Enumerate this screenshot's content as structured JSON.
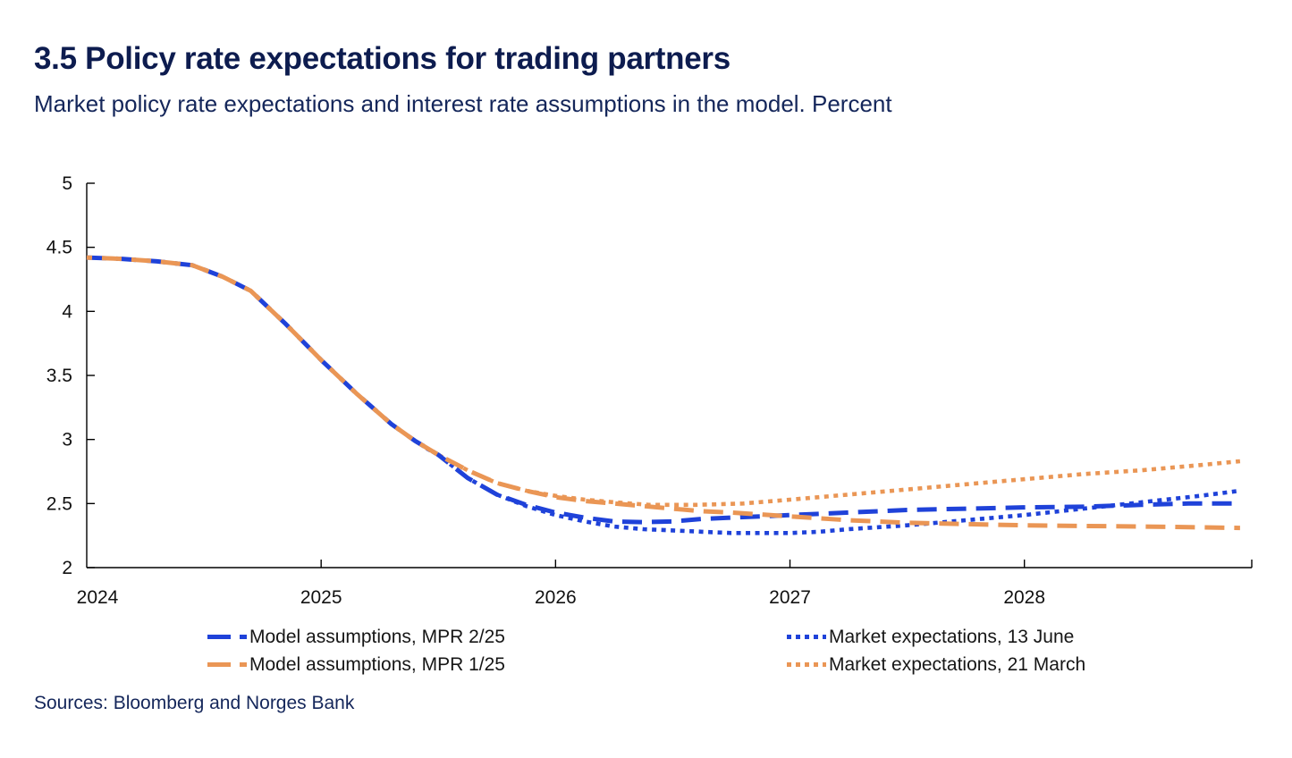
{
  "header": {
    "title": "3.5 Policy rate expectations for trading partners",
    "subtitle": "Market policy rate expectations and interest rate assumptions in the model. Percent"
  },
  "footer": {
    "sources": "Sources: Bloomberg and Norges Bank"
  },
  "colors": {
    "title_navy": "#0d1c4f",
    "axis": "#000000",
    "blue": "#1f42d9",
    "orange": "#ea9655"
  },
  "chart_data": {
    "type": "line",
    "title": "3.5 Policy rate expectations for trading partners",
    "subtitle": "Market policy rate expectations and interest rate assumptions in the model. Percent",
    "xlabel": "",
    "ylabel": "Percent",
    "grid": false,
    "legend_position": "bottom",
    "ylim": [
      2,
      5
    ],
    "yticks": [
      2,
      2.5,
      3,
      3.5,
      4,
      4.5,
      5
    ],
    "xlim": [
      2024,
      2028.97
    ],
    "xticks": [
      {
        "year": 2024,
        "label": "2024",
        "tick": false,
        "label_dx": 12
      },
      {
        "year": 2025,
        "label": "2025",
        "tick": true,
        "label_dx": 0
      },
      {
        "year": 2026,
        "label": "2026",
        "tick": true,
        "label_dx": 0
      },
      {
        "year": 2027,
        "label": "2027",
        "tick": true,
        "label_dx": 0
      },
      {
        "year": 2028,
        "label": "2028",
        "tick": true,
        "label_dx": 0
      },
      {
        "year": 2028.97,
        "label": "",
        "tick": true,
        "label_dx": 0
      }
    ],
    "series": [
      {
        "name": "Model assumptions, MPR 2/25",
        "color": "#1f42d9",
        "style": "dashed",
        "dash_offset": 0,
        "points": [
          [
            2024.0,
            4.42
          ],
          [
            2024.15,
            4.41
          ],
          [
            2024.3,
            4.39
          ],
          [
            2024.45,
            4.36
          ],
          [
            2024.58,
            4.27
          ],
          [
            2024.7,
            4.16
          ],
          [
            2024.85,
            3.9
          ],
          [
            2025.0,
            3.62
          ],
          [
            2025.15,
            3.36
          ],
          [
            2025.3,
            3.12
          ],
          [
            2025.4,
            2.99
          ],
          [
            2025.5,
            2.88
          ],
          [
            2025.625,
            2.7
          ],
          [
            2025.75,
            2.57
          ],
          [
            2025.875,
            2.49
          ],
          [
            2026.0,
            2.43
          ],
          [
            2026.125,
            2.39
          ],
          [
            2026.25,
            2.36
          ],
          [
            2026.375,
            2.355
          ],
          [
            2026.5,
            2.36
          ],
          [
            2026.625,
            2.38
          ],
          [
            2026.75,
            2.39
          ],
          [
            2027.0,
            2.41
          ],
          [
            2027.25,
            2.43
          ],
          [
            2027.5,
            2.45
          ],
          [
            2027.75,
            2.46
          ],
          [
            2028.0,
            2.47
          ],
          [
            2028.25,
            2.475
          ],
          [
            2028.5,
            2.49
          ],
          [
            2028.7,
            2.5
          ],
          [
            2028.92,
            2.5
          ]
        ]
      },
      {
        "name": "Model assumptions, MPR 1/25",
        "color": "#ea9655",
        "style": "dashed",
        "dash_offset": 16,
        "points": [
          [
            2024.0,
            4.42
          ],
          [
            2024.15,
            4.41
          ],
          [
            2024.3,
            4.39
          ],
          [
            2024.45,
            4.36
          ],
          [
            2024.58,
            4.27
          ],
          [
            2024.7,
            4.16
          ],
          [
            2024.85,
            3.9
          ],
          [
            2025.0,
            3.62
          ],
          [
            2025.15,
            3.36
          ],
          [
            2025.3,
            3.12
          ],
          [
            2025.4,
            2.99
          ],
          [
            2025.5,
            2.88
          ],
          [
            2025.625,
            2.76
          ],
          [
            2025.75,
            2.66
          ],
          [
            2025.875,
            2.6
          ],
          [
            2026.0,
            2.55
          ],
          [
            2026.125,
            2.52
          ],
          [
            2026.25,
            2.5
          ],
          [
            2026.375,
            2.48
          ],
          [
            2026.5,
            2.46
          ],
          [
            2026.625,
            2.44
          ],
          [
            2026.75,
            2.43
          ],
          [
            2027.0,
            2.4
          ],
          [
            2027.25,
            2.37
          ],
          [
            2027.5,
            2.35
          ],
          [
            2027.75,
            2.34
          ],
          [
            2028.0,
            2.33
          ],
          [
            2028.25,
            2.325
          ],
          [
            2028.5,
            2.32
          ],
          [
            2028.75,
            2.315
          ],
          [
            2028.92,
            2.31
          ]
        ]
      },
      {
        "name": "Market expectations, 13 June",
        "color": "#1f42d9",
        "style": "dotted",
        "dash_offset": 0,
        "points": [
          [
            2025.45,
            2.93
          ],
          [
            2025.5,
            2.88
          ],
          [
            2025.625,
            2.7
          ],
          [
            2025.75,
            2.57
          ],
          [
            2025.875,
            2.48
          ],
          [
            2026.0,
            2.41
          ],
          [
            2026.125,
            2.36
          ],
          [
            2026.25,
            2.32
          ],
          [
            2026.375,
            2.3
          ],
          [
            2026.5,
            2.29
          ],
          [
            2026.625,
            2.28
          ],
          [
            2026.75,
            2.27
          ],
          [
            2027.0,
            2.27
          ],
          [
            2027.125,
            2.28
          ],
          [
            2027.25,
            2.3
          ],
          [
            2027.5,
            2.33
          ],
          [
            2027.75,
            2.37
          ],
          [
            2028.0,
            2.41
          ],
          [
            2028.25,
            2.46
          ],
          [
            2028.5,
            2.51
          ],
          [
            2028.75,
            2.56
          ],
          [
            2028.92,
            2.6
          ]
        ]
      },
      {
        "name": "Market expectations, 21 March",
        "color": "#ea9655",
        "style": "dotted",
        "dash_offset": 0,
        "points": [
          [
            2025.3,
            3.12
          ],
          [
            2025.4,
            2.99
          ],
          [
            2025.5,
            2.88
          ],
          [
            2025.625,
            2.76
          ],
          [
            2025.75,
            2.66
          ],
          [
            2025.875,
            2.6
          ],
          [
            2026.0,
            2.56
          ],
          [
            2026.125,
            2.53
          ],
          [
            2026.25,
            2.51
          ],
          [
            2026.4,
            2.49
          ],
          [
            2026.6,
            2.49
          ],
          [
            2026.8,
            2.5
          ],
          [
            2027.0,
            2.53
          ],
          [
            2027.25,
            2.57
          ],
          [
            2027.5,
            2.61
          ],
          [
            2027.75,
            2.65
          ],
          [
            2028.0,
            2.69
          ],
          [
            2028.25,
            2.73
          ],
          [
            2028.5,
            2.76
          ],
          [
            2028.75,
            2.8
          ],
          [
            2028.92,
            2.83
          ]
        ]
      }
    ],
    "draw_order": [
      2,
      3,
      0,
      1
    ]
  }
}
